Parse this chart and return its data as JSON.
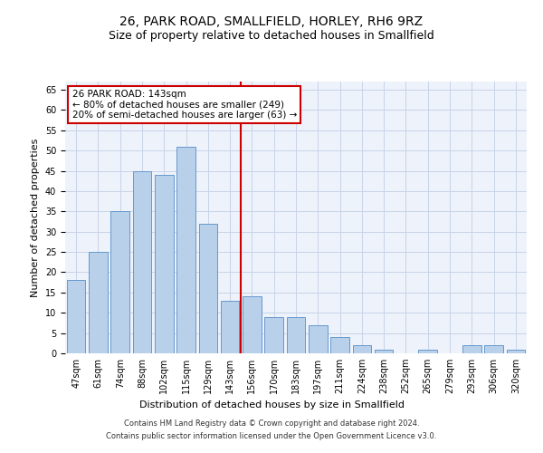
{
  "title": "26, PARK ROAD, SMALLFIELD, HORLEY, RH6 9RZ",
  "subtitle": "Size of property relative to detached houses in Smallfield",
  "xlabel": "Distribution of detached houses by size in Smallfield",
  "ylabel": "Number of detached properties",
  "categories": [
    "47sqm",
    "61sqm",
    "74sqm",
    "88sqm",
    "102sqm",
    "115sqm",
    "129sqm",
    "143sqm",
    "156sqm",
    "170sqm",
    "183sqm",
    "197sqm",
    "211sqm",
    "224sqm",
    "238sqm",
    "252sqm",
    "265sqm",
    "279sqm",
    "293sqm",
    "306sqm",
    "320sqm"
  ],
  "values": [
    18,
    25,
    35,
    45,
    44,
    51,
    32,
    13,
    14,
    9,
    9,
    7,
    4,
    2,
    1,
    0,
    1,
    0,
    2,
    2,
    1
  ],
  "bar_color": "#b8d0ea",
  "bar_edge_color": "#6699cc",
  "highlight_index": 7,
  "highlight_line_color": "#cc0000",
  "ylim": [
    0,
    67
  ],
  "yticks": [
    0,
    5,
    10,
    15,
    20,
    25,
    30,
    35,
    40,
    45,
    50,
    55,
    60,
    65
  ],
  "annotation_line1": "26 PARK ROAD: 143sqm",
  "annotation_line2": "← 80% of detached houses are smaller (249)",
  "annotation_line3": "20% of semi-detached houses are larger (63) →",
  "annotation_box_color": "#ffffff",
  "annotation_box_edge": "#cc0000",
  "footer_line1": "Contains HM Land Registry data © Crown copyright and database right 2024.",
  "footer_line2": "Contains public sector information licensed under the Open Government Licence v3.0.",
  "background_color": "#eef2fb",
  "grid_color": "#c8d4e8",
  "title_fontsize": 10,
  "subtitle_fontsize": 9,
  "axis_label_fontsize": 8,
  "tick_fontsize": 7,
  "annotation_fontsize": 7.5,
  "footer_fontsize": 6
}
